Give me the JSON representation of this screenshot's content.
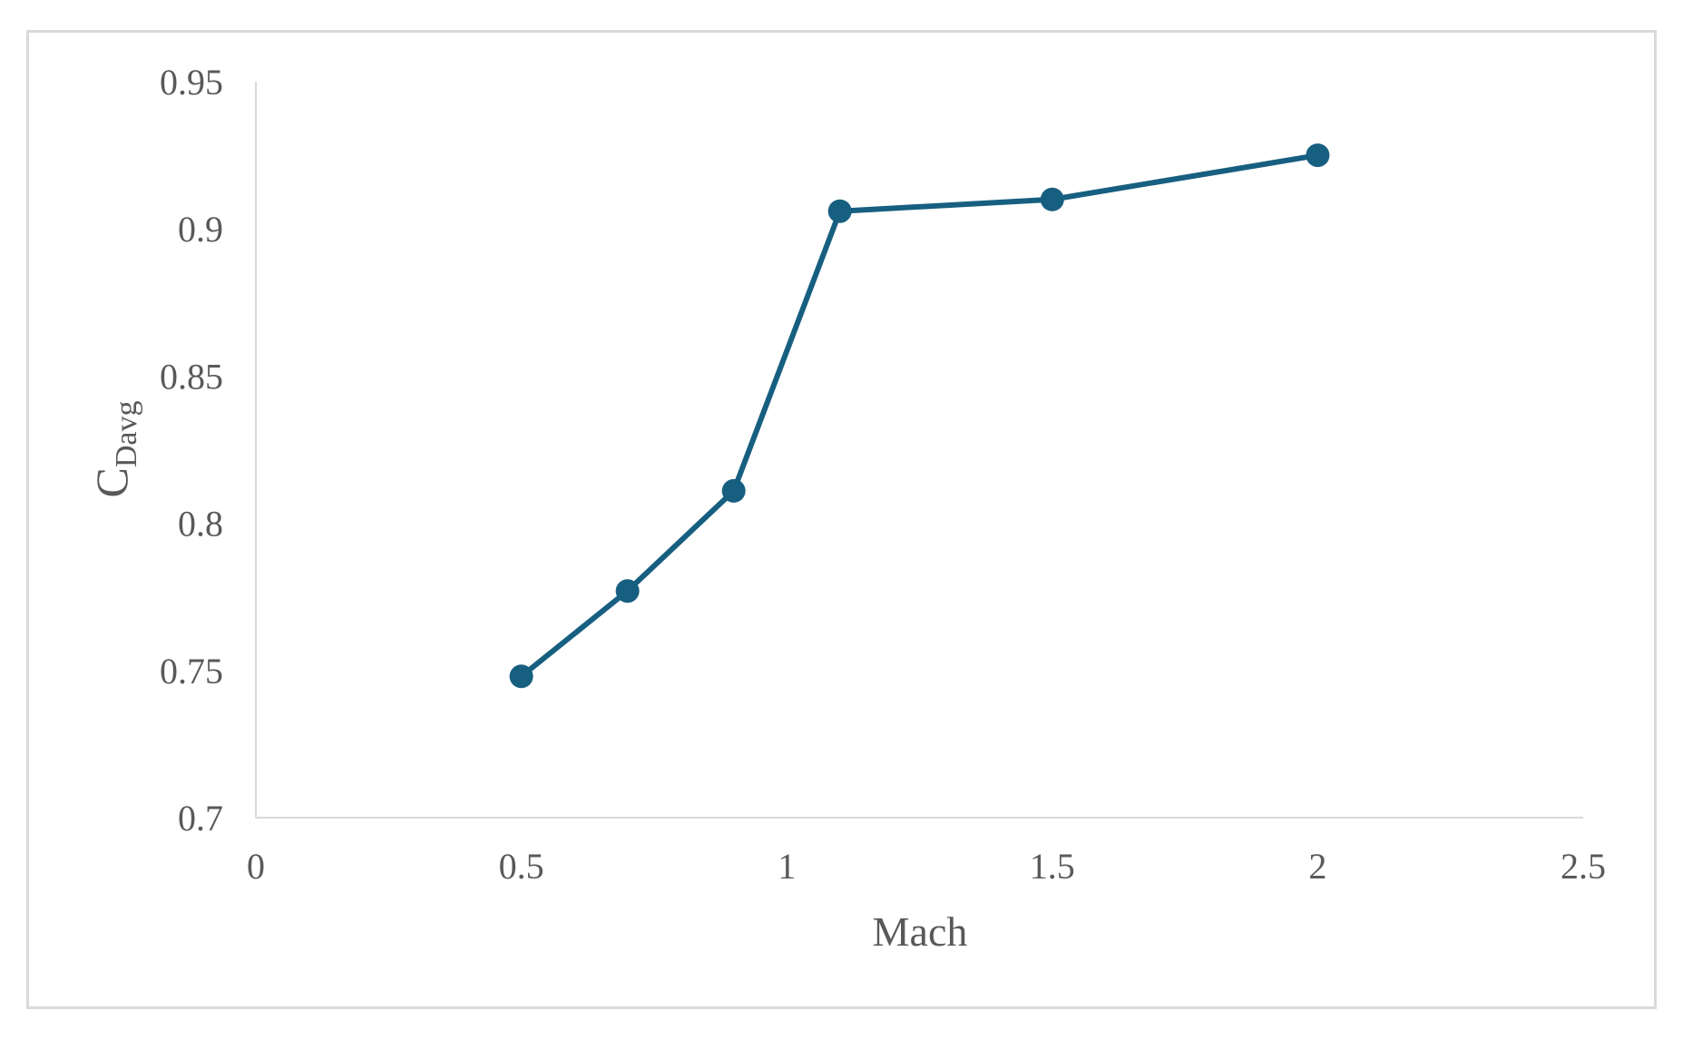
{
  "chart_data": {
    "type": "line",
    "title": "",
    "xlabel": "Mach",
    "ylabel": {
      "main": "C",
      "subscript": "Davg"
    },
    "xlim": [
      0,
      2.5
    ],
    "ylim": [
      0.7,
      0.95
    ],
    "xticks": [
      0,
      0.5,
      1,
      1.5,
      2,
      2.5
    ],
    "yticks": [
      0.7,
      0.75,
      0.8,
      0.85,
      0.9,
      0.95
    ],
    "xtick_labels": [
      "0",
      "0.5",
      "1",
      "1.5",
      "2",
      "2.5"
    ],
    "ytick_labels": [
      "0.7",
      "0.75",
      "0.8",
      "0.85",
      "0.9",
      "0.95"
    ],
    "grid": false,
    "legend": "none",
    "series": [
      {
        "color": "#175f80",
        "marker": "circle",
        "x": [
          0.5,
          0.7,
          0.9,
          1.1,
          1.5,
          2.0
        ],
        "y": [
          0.748,
          0.777,
          0.811,
          0.906,
          0.91,
          0.925
        ]
      }
    ],
    "axis_color": "#d9d9d9"
  }
}
